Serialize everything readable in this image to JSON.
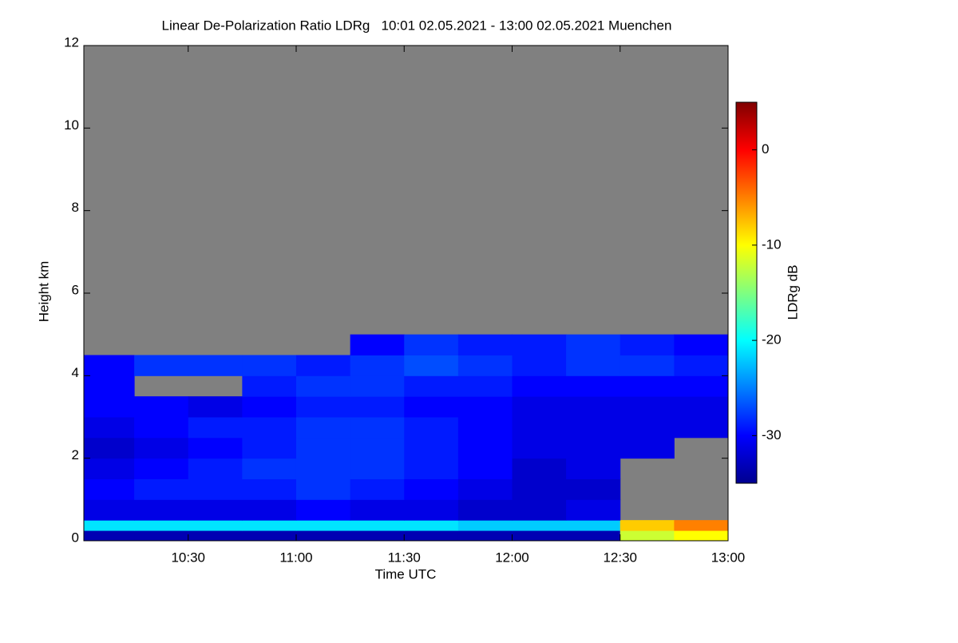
{
  "chart_data": {
    "type": "heatmap",
    "title": "Linear De-Polarization Ratio LDRg   10:01 02.05.2021 - 13:00 02.05.2021 Muenchen",
    "x_label": "Time UTC",
    "y_label": "Height km",
    "colorbar_label": "LDRg dB",
    "colormap": "jet",
    "xlim": [
      601,
      780
    ],
    "xticks": [
      {
        "value": 630,
        "label": "10:30"
      },
      {
        "value": 660,
        "label": "11:00"
      },
      {
        "value": 690,
        "label": "11:30"
      },
      {
        "value": 720,
        "label": "12:00"
      },
      {
        "value": 750,
        "label": "12:30"
      },
      {
        "value": 780,
        "label": "13:00"
      }
    ],
    "ylim": [
      0,
      12
    ],
    "yticks": [
      0,
      2,
      4,
      6,
      8,
      10,
      12
    ],
    "clim": [
      -35,
      5
    ],
    "cticks": [
      0,
      -10,
      -20,
      -30
    ],
    "x_edges": [
      601,
      615,
      630,
      645,
      660,
      675,
      690,
      705,
      720,
      735,
      750,
      765,
      780
    ],
    "y_edges": [
      0,
      0.25,
      0.5,
      1,
      1.5,
      2,
      2.5,
      3,
      3.5,
      4,
      4.5,
      5
    ],
    "z": [
      [
        -33,
        -33,
        -33,
        -33,
        -33,
        -33,
        -33,
        -33,
        -33,
        -33,
        -12,
        -10
      ],
      [
        -21,
        -21,
        -21,
        -21,
        -21,
        -21,
        -21,
        -22,
        -22,
        -22,
        -8,
        -5
      ],
      [
        -31,
        -31,
        -31,
        -31,
        -30,
        -31,
        -31,
        -32,
        -32,
        -31,
        null,
        null
      ],
      [
        -30,
        -29,
        -29,
        -29,
        -28,
        -29,
        -30,
        -31,
        -32,
        -32,
        null,
        null
      ],
      [
        -31,
        -30,
        -29,
        -28,
        -28,
        -28,
        -29,
        -30,
        -32,
        -31,
        null,
        null
      ],
      [
        -32,
        -31,
        -30,
        -29,
        -28,
        -28,
        -29,
        -30,
        -31,
        -31,
        -31,
        null
      ],
      [
        -31,
        -30,
        -29,
        -29,
        -28,
        -28,
        -29,
        -30,
        -31,
        -31,
        -31,
        -31
      ],
      [
        -30,
        -30,
        -31,
        -30,
        -29,
        -29,
        -30,
        -30,
        -31,
        -31,
        -31,
        -31
      ],
      [
        -30,
        null,
        null,
        -29,
        -28,
        -28,
        -29,
        -29,
        -30,
        -30,
        -30,
        -30
      ],
      [
        -30,
        -28,
        -28,
        -28,
        -29,
        -28,
        -27,
        -28,
        -29,
        -28,
        -28,
        -29
      ],
      [
        null,
        null,
        null,
        null,
        null,
        -30,
        -28,
        -29,
        -29,
        -28,
        -29,
        -30
      ]
    ]
  }
}
